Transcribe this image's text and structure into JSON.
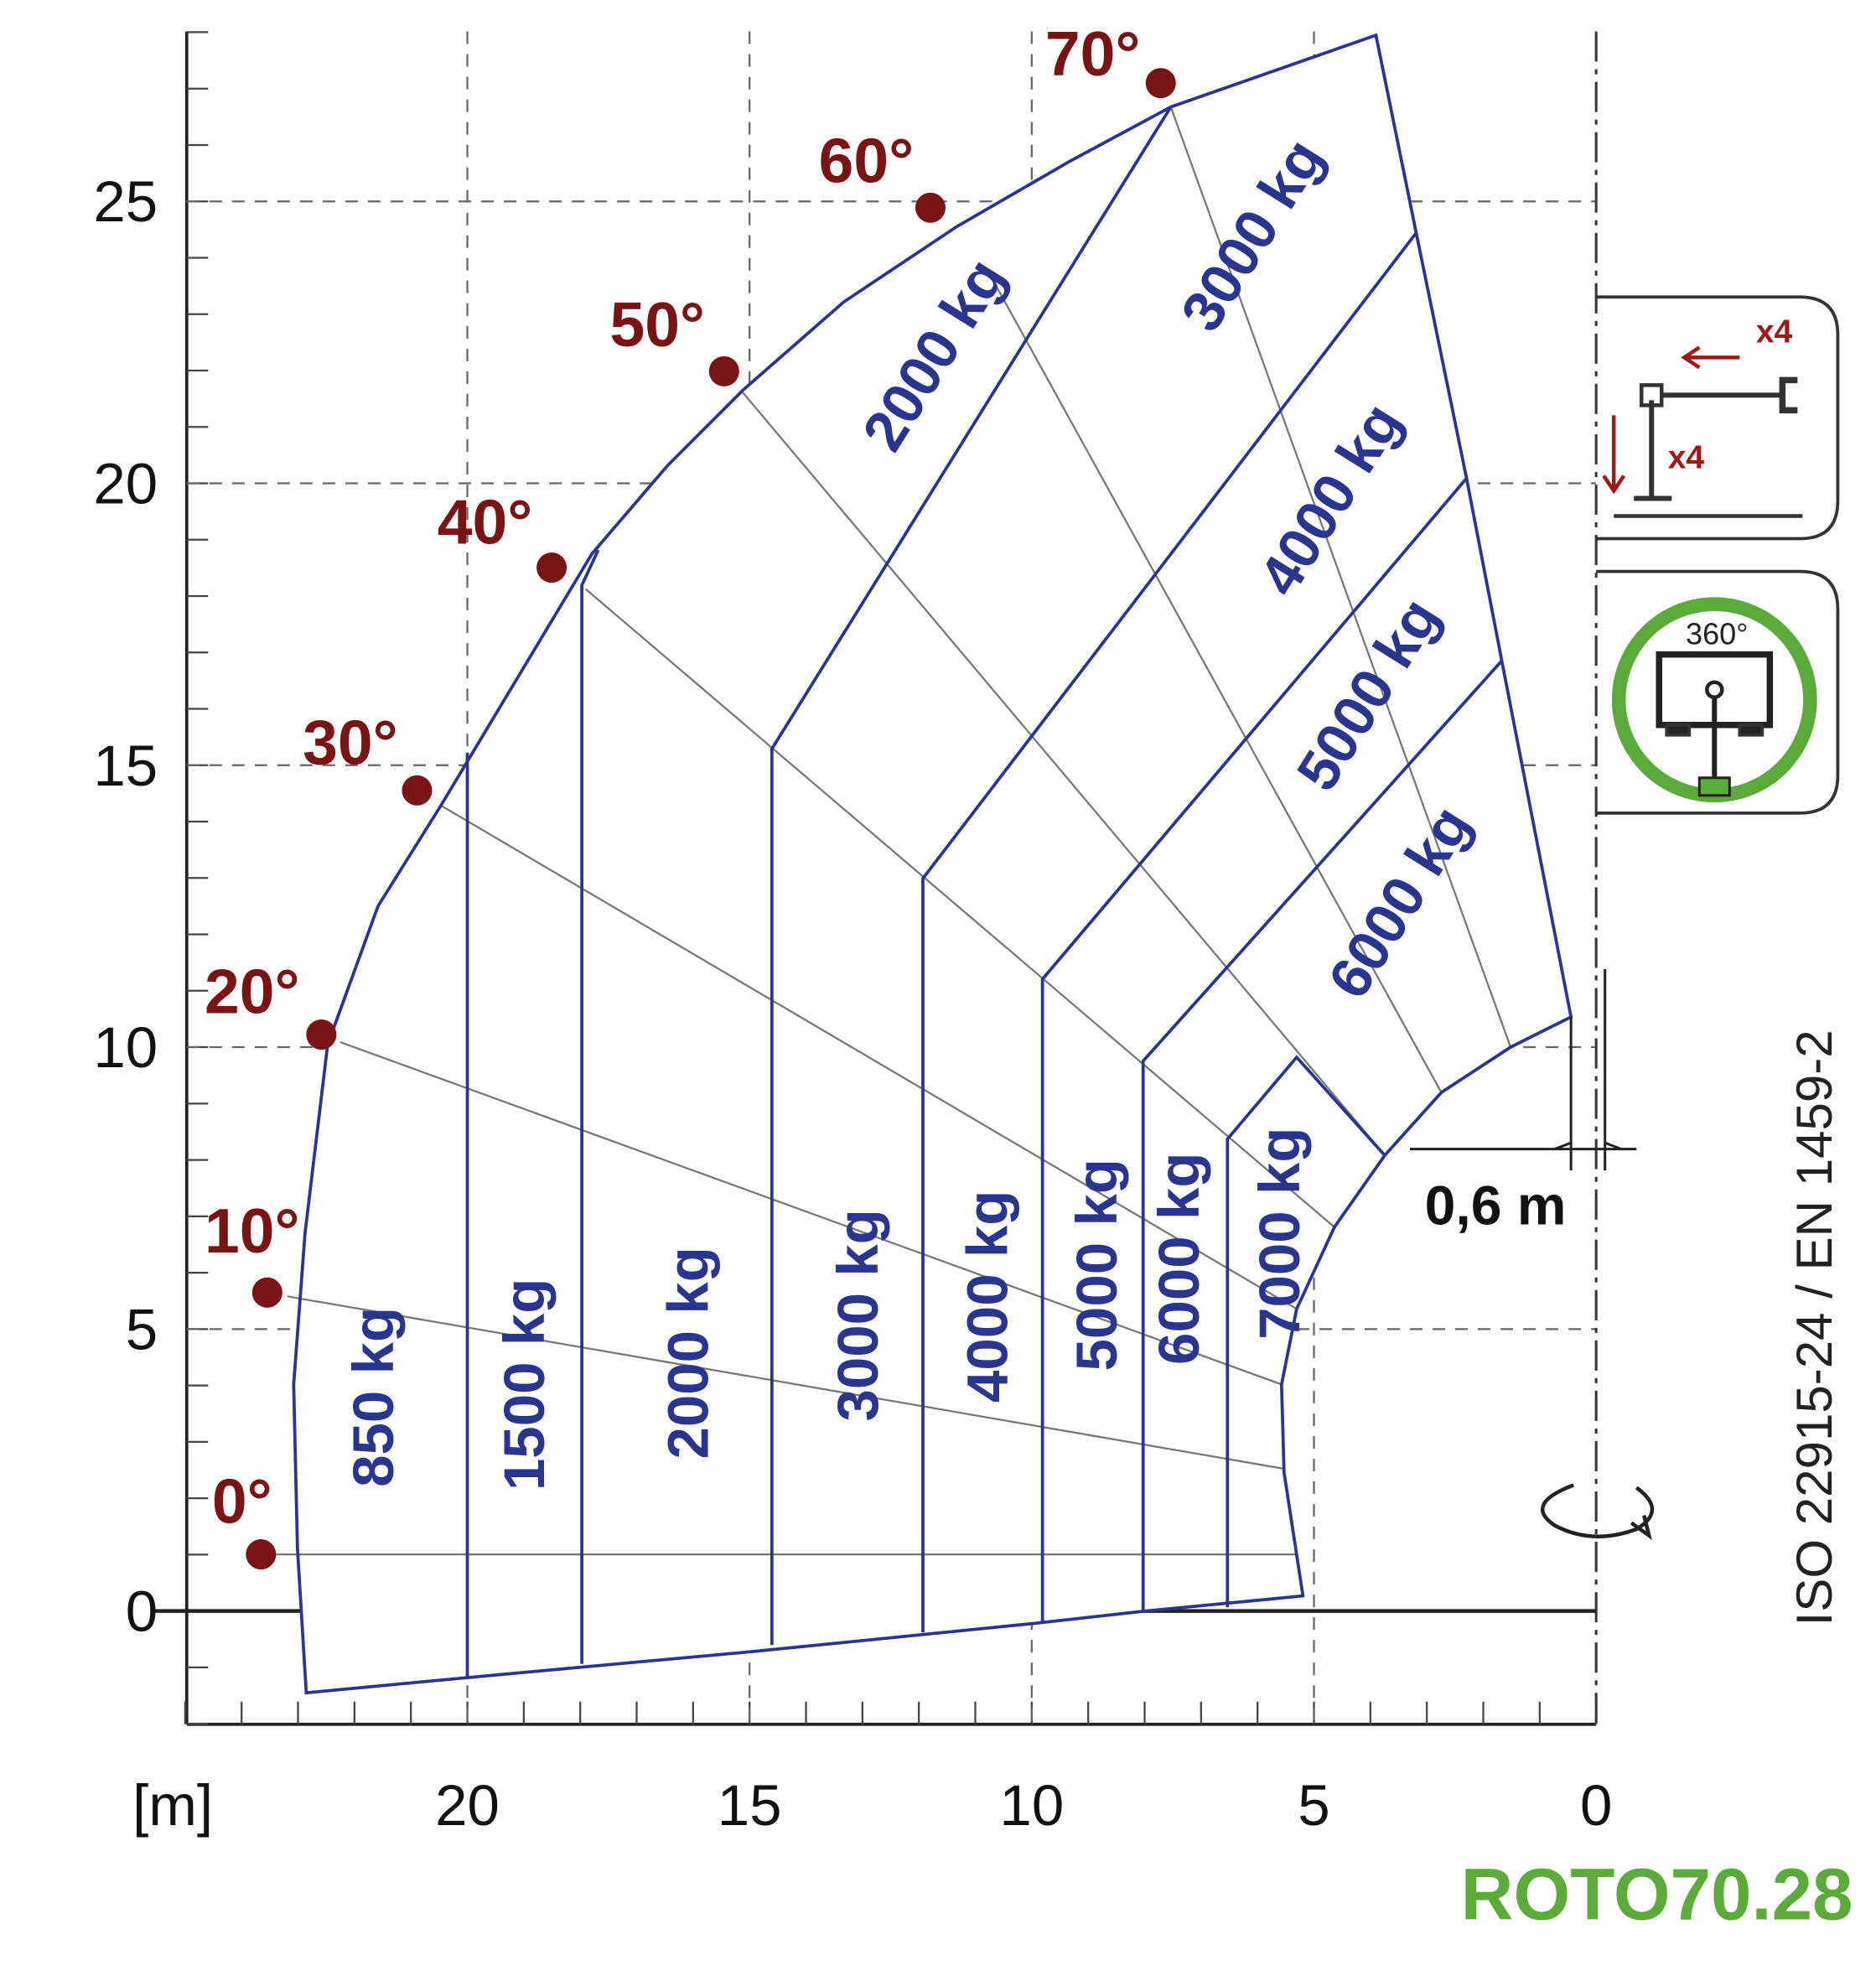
{
  "axes": {
    "x_unit": "[m]",
    "x_ticks": [
      "20",
      "15",
      "10",
      "5",
      "0"
    ],
    "y_ticks": [
      "0",
      "5",
      "10",
      "15",
      "20",
      "25"
    ]
  },
  "angles": [
    "0°",
    "10°",
    "20°",
    "30°",
    "40°",
    "50°",
    "60°",
    "70°"
  ],
  "loads": {
    "vertical": [
      "850 kg",
      "1500 kg",
      "2000 kg",
      "3000 kg",
      "4000 kg",
      "5000 kg",
      "6000 kg",
      "7000 kg"
    ],
    "diagonal": [
      "2000 kg",
      "3000 kg",
      "4000 kg",
      "5000 kg",
      "6000 kg"
    ]
  },
  "offset_label": "0,6 m",
  "standard": "ISO 22915-24  / EN 1459-2",
  "icons": {
    "outrigger": [
      "x4",
      "x4"
    ],
    "rotation": "360°"
  },
  "model": "ROTO70.28"
}
